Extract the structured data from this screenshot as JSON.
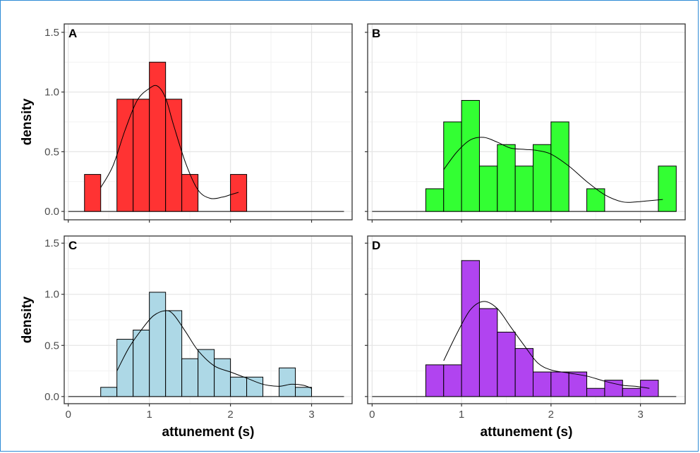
{
  "chart_data": [
    {
      "type": "bar",
      "panel_label": "A",
      "color": "#ff3333",
      "bin_width": 0.2,
      "bins": [
        {
          "x0": 0.2,
          "x1": 0.4,
          "value": 0.31
        },
        {
          "x0": 0.6,
          "x1": 0.8,
          "value": 0.94
        },
        {
          "x0": 0.8,
          "x1": 1.0,
          "value": 0.94
        },
        {
          "x0": 1.0,
          "x1": 1.2,
          "value": 1.25
        },
        {
          "x0": 1.2,
          "x1": 1.4,
          "value": 0.94
        },
        {
          "x0": 1.4,
          "x1": 1.6,
          "value": 0.31
        },
        {
          "x0": 2.0,
          "x1": 2.2,
          "value": 0.31
        }
      ],
      "density_curve": {
        "x": [
          0.4,
          0.55,
          0.7,
          0.85,
          1.0,
          1.1,
          1.2,
          1.3,
          1.45,
          1.6,
          1.75,
          1.9,
          2.0,
          2.1
        ],
        "y": [
          0.2,
          0.38,
          0.68,
          0.93,
          1.03,
          1.05,
          0.95,
          0.72,
          0.4,
          0.18,
          0.11,
          0.12,
          0.14,
          0.16
        ]
      },
      "xlim": [
        -0.05,
        3.5
      ],
      "ylim": [
        -0.07,
        1.57
      ],
      "xticks": [
        "0",
        "1",
        "2",
        "3"
      ],
      "yticks": [
        "0.0",
        "0.5",
        "1.0",
        "1.5"
      ],
      "ylabel": "density",
      "xlabel": ""
    },
    {
      "type": "bar",
      "panel_label": "B",
      "color": "#33ff33",
      "bin_width": 0.2,
      "bins": [
        {
          "x0": 0.6,
          "x1": 0.8,
          "value": 0.19
        },
        {
          "x0": 0.8,
          "x1": 1.0,
          "value": 0.75
        },
        {
          "x0": 1.0,
          "x1": 1.2,
          "value": 0.93
        },
        {
          "x0": 1.2,
          "x1": 1.4,
          "value": 0.38
        },
        {
          "x0": 1.4,
          "x1": 1.6,
          "value": 0.56
        },
        {
          "x0": 1.6,
          "x1": 1.8,
          "value": 0.38
        },
        {
          "x0": 1.8,
          "x1": 2.0,
          "value": 0.56
        },
        {
          "x0": 2.0,
          "x1": 2.2,
          "value": 0.75
        },
        {
          "x0": 2.4,
          "x1": 2.6,
          "value": 0.19
        },
        {
          "x0": 3.2,
          "x1": 3.4,
          "value": 0.38
        }
      ],
      "density_curve": {
        "x": [
          0.8,
          0.95,
          1.1,
          1.25,
          1.4,
          1.55,
          1.7,
          1.85,
          2.0,
          2.2,
          2.4,
          2.6,
          2.8,
          2.95,
          3.1,
          3.25
        ],
        "y": [
          0.35,
          0.5,
          0.6,
          0.62,
          0.58,
          0.53,
          0.52,
          0.51,
          0.48,
          0.38,
          0.25,
          0.14,
          0.08,
          0.08,
          0.09,
          0.1
        ]
      },
      "xlim": [
        -0.05,
        3.5
      ],
      "ylim": [
        -0.07,
        1.57
      ],
      "xticks": [
        "0",
        "1",
        "2",
        "3"
      ],
      "yticks": [
        "0.0",
        "0.5",
        "1.0",
        "1.5"
      ],
      "ylabel": "",
      "xlabel": ""
    },
    {
      "type": "bar",
      "panel_label": "C",
      "color": "#add8e6",
      "bin_width": 0.2,
      "bins": [
        {
          "x0": 0.4,
          "x1": 0.6,
          "value": 0.09
        },
        {
          "x0": 0.6,
          "x1": 0.8,
          "value": 0.56
        },
        {
          "x0": 0.8,
          "x1": 1.0,
          "value": 0.65
        },
        {
          "x0": 1.0,
          "x1": 1.2,
          "value": 1.02
        },
        {
          "x0": 1.2,
          "x1": 1.4,
          "value": 0.84
        },
        {
          "x0": 1.4,
          "x1": 1.6,
          "value": 0.37
        },
        {
          "x0": 1.6,
          "x1": 1.8,
          "value": 0.46
        },
        {
          "x0": 1.8,
          "x1": 2.0,
          "value": 0.37
        },
        {
          "x0": 2.0,
          "x1": 2.2,
          "value": 0.19
        },
        {
          "x0": 2.2,
          "x1": 2.4,
          "value": 0.19
        },
        {
          "x0": 2.6,
          "x1": 2.8,
          "value": 0.28
        },
        {
          "x0": 2.8,
          "x1": 3.0,
          "value": 0.09
        }
      ],
      "density_curve": {
        "x": [
          0.6,
          0.75,
          0.9,
          1.05,
          1.2,
          1.3,
          1.45,
          1.6,
          1.8,
          2.0,
          2.2,
          2.4,
          2.6,
          2.75,
          2.9,
          3.0
        ],
        "y": [
          0.25,
          0.48,
          0.65,
          0.79,
          0.84,
          0.8,
          0.63,
          0.45,
          0.3,
          0.24,
          0.18,
          0.12,
          0.1,
          0.12,
          0.11,
          0.08
        ]
      },
      "xlim": [
        -0.05,
        3.5
      ],
      "ylim": [
        -0.07,
        1.57
      ],
      "xticks": [
        "0",
        "1",
        "2",
        "3"
      ],
      "yticks": [
        "0.0",
        "0.5",
        "1.0",
        "1.5"
      ],
      "ylabel": "density",
      "xlabel": "attunement (s)"
    },
    {
      "type": "bar",
      "panel_label": "D",
      "color": "#b144f0",
      "bin_width": 0.2,
      "bins": [
        {
          "x0": 0.6,
          "x1": 0.8,
          "value": 0.31
        },
        {
          "x0": 0.8,
          "x1": 1.0,
          "value": 0.31
        },
        {
          "x0": 1.0,
          "x1": 1.2,
          "value": 1.33
        },
        {
          "x0": 1.2,
          "x1": 1.4,
          "value": 0.86
        },
        {
          "x0": 1.4,
          "x1": 1.6,
          "value": 0.63
        },
        {
          "x0": 1.6,
          "x1": 1.8,
          "value": 0.47
        },
        {
          "x0": 1.8,
          "x1": 2.0,
          "value": 0.24
        },
        {
          "x0": 2.0,
          "x1": 2.2,
          "value": 0.24
        },
        {
          "x0": 2.2,
          "x1": 2.4,
          "value": 0.24
        },
        {
          "x0": 2.4,
          "x1": 2.6,
          "value": 0.08
        },
        {
          "x0": 2.6,
          "x1": 2.8,
          "value": 0.16
        },
        {
          "x0": 2.8,
          "x1": 3.0,
          "value": 0.08
        },
        {
          "x0": 3.0,
          "x1": 3.2,
          "value": 0.16
        }
      ],
      "density_curve": {
        "x": [
          0.8,
          0.95,
          1.1,
          1.25,
          1.4,
          1.55,
          1.7,
          1.85,
          2.0,
          2.2,
          2.4,
          2.6,
          2.8,
          2.95,
          3.1
        ],
        "y": [
          0.35,
          0.62,
          0.85,
          0.93,
          0.86,
          0.68,
          0.5,
          0.33,
          0.26,
          0.23,
          0.2,
          0.15,
          0.11,
          0.1,
          0.08
        ]
      },
      "xlim": [
        -0.05,
        3.5
      ],
      "ylim": [
        -0.07,
        1.57
      ],
      "xticks": [
        "0",
        "1",
        "2",
        "3"
      ],
      "yticks": [
        "0.0",
        "0.5",
        "1.0",
        "1.5"
      ],
      "ylabel": "",
      "xlabel": "attunement (s)"
    }
  ]
}
